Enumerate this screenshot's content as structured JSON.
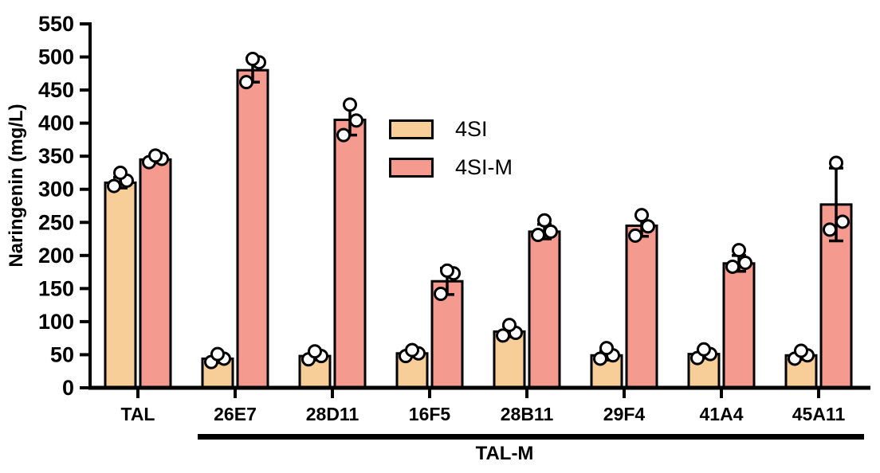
{
  "chart_data": {
    "type": "bar",
    "title": "",
    "ylabel": "Naringenin (mg/L)",
    "xlabel": "",
    "ylim": [
      0,
      550
    ],
    "ytick_interval": 50,
    "grid": false,
    "legend_position": "upper-center-inside",
    "categories": [
      "TAL",
      "26E7",
      "28D11",
      "16F5",
      "28B11",
      "29F4",
      "41A4",
      "45A11"
    ],
    "bracket": {
      "label": "TAL-M",
      "from_category": "26E7",
      "to_category": "45A11"
    },
    "point_style": "open-circles",
    "series": [
      {
        "name": "4SI",
        "color": "#F7CE97",
        "values": [
          310,
          44,
          48,
          52,
          85,
          49,
          51,
          49
        ],
        "errors": [
          8,
          6,
          6,
          5,
          8,
          7,
          6,
          6
        ],
        "points": [
          [
            305,
            313,
            325
          ],
          [
            39,
            44,
            51
          ],
          [
            43,
            48,
            55
          ],
          [
            48,
            52,
            57
          ],
          [
            79,
            83,
            95
          ],
          [
            44,
            49,
            60
          ],
          [
            45,
            51,
            58
          ],
          [
            44,
            49,
            56
          ]
        ]
      },
      {
        "name": "4SI-M",
        "color": "#F49A8E",
        "values": [
          345,
          480,
          405,
          161,
          236,
          245,
          188,
          277
        ],
        "errors": [
          5,
          18,
          23,
          20,
          11,
          16,
          12,
          55
        ],
        "points": [
          [
            341,
            346,
            351
          ],
          [
            462,
            492,
            497
          ],
          [
            382,
            404,
            428
          ],
          [
            142,
            173,
            177
          ],
          [
            231,
            236,
            253
          ],
          [
            230,
            244,
            261
          ],
          [
            183,
            189,
            208
          ],
          [
            239,
            251,
            340
          ]
        ]
      }
    ]
  }
}
